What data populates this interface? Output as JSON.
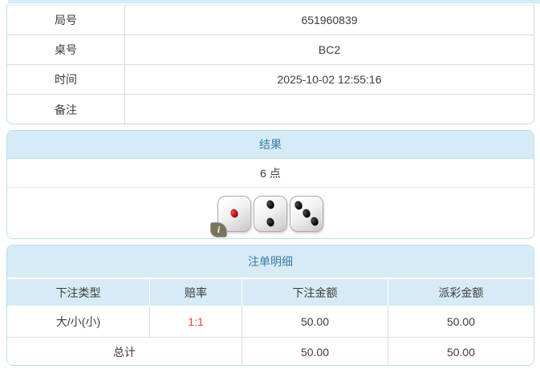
{
  "colors": {
    "accent_bg": "#d6ebf5",
    "accent_border": "#bcdeec",
    "header_text": "#3a7ca8",
    "row_border": "#dcdcdc",
    "text": "#3c3c3c",
    "odds_red": "#e8403a"
  },
  "game_info": {
    "rows": [
      {
        "label": "局号",
        "value": "651960839"
      },
      {
        "label": "桌号",
        "value": "BC2"
      },
      {
        "label": "时间",
        "value": "2025-10-02 12:55:16"
      },
      {
        "label": "备注",
        "value": ""
      }
    ]
  },
  "result": {
    "title": "结果",
    "points_text": "6 点",
    "dice": [
      1,
      2,
      3
    ],
    "info_icon": "i"
  },
  "bets": {
    "title": "注单明细",
    "columns": [
      "下注类型",
      "赔率",
      "下注金额",
      "派彩金额"
    ],
    "rows": [
      {
        "type": "大/小(小)",
        "odds": "1:1",
        "bet_amount": "50.00",
        "payout_amount": "50.00"
      }
    ],
    "total": {
      "label": "总计",
      "bet_amount": "50.00",
      "payout_amount": "50.00"
    }
  }
}
